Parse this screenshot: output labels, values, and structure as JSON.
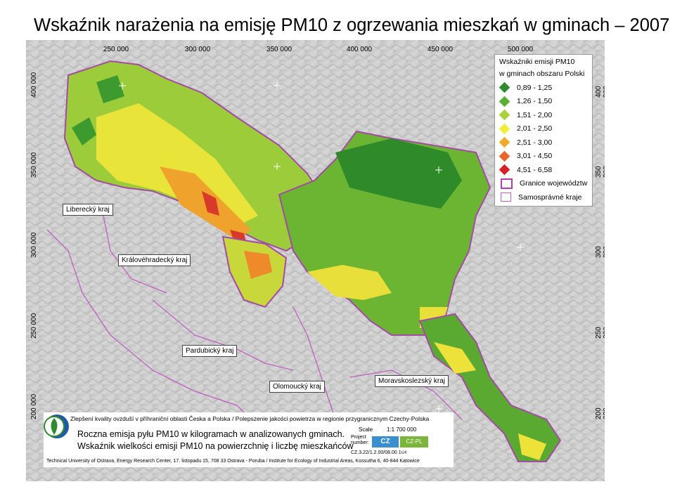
{
  "slide": {
    "title": "Wskaźnik narażenia na emisję PM10 z ogrzewania mieszkań w gminach – 2007 r."
  },
  "map": {
    "coords_top": [
      "250 000",
      "300 000",
      "350 000",
      "400 000",
      "450 000",
      "500 000"
    ],
    "coords_left": [
      "400 000",
      "350 000",
      "300 000",
      "250 000",
      "200 000"
    ],
    "coords_right": [
      "400 000",
      "350 000",
      "300 000",
      "250 000",
      "200 000"
    ],
    "regions": {
      "liberecky": "Liberecký kraj",
      "kralovehradecky": "Královéhradecký kraj",
      "pardubicky": "Pardubický kraj",
      "olomoucky": "Olomoucký kraj",
      "moravskoslezsky": "Moravskoslezský kraj"
    }
  },
  "legend": {
    "title": "Wskaźniki emisji PM10",
    "subtitle": "w gminach obszaru Polski",
    "classes": [
      {
        "label": "0,89 - 1,25",
        "color": "#2e8b2e"
      },
      {
        "label": "1,26 - 1,50",
        "color": "#58b032"
      },
      {
        "label": "1,51 - 2,00",
        "color": "#a8d23a"
      },
      {
        "label": "2,01 - 2,50",
        "color": "#f2ee3a"
      },
      {
        "label": "2,51 - 3,00",
        "color": "#f3a92c"
      },
      {
        "label": "3,01 - 4,50",
        "color": "#e8662a"
      },
      {
        "label": "4,51 - 6,58",
        "color": "#d8222a"
      }
    ],
    "boundaries": [
      {
        "label": "Granice województw"
      },
      {
        "label": "Samosprávné kraje"
      }
    ]
  },
  "footer": {
    "project": "Zlepšení kvality ovzduší v příhraniční oblasti Česka a Polska / Polepszenie jakości powietrza w regionie przygranicznym Czechy-Polska",
    "line1": "Roczna emisja pyłu PM10 w kilogramach w analizowanych gminach.",
    "line2": "Wskaźnik wielkości emisji PM10 na powierzchnię i liczbę mieszkańców",
    "scale_label": "Scale",
    "scale_value": "1:1 700 000",
    "project_number_label": "Project number:",
    "project_number_value": "CZ.3.22/1.2.00/08.00 104",
    "institutions": "Technical University of Ostrava, Energy Research Center, 17. listopadu 15, 708 33 Ostrava - Poruba / Institute for Ecology of Industrial Areas, Kossutha 6, 40-844 Katowice",
    "logo_cz": "CZ",
    "logo_cp": "CZ-PL 2007-2013"
  }
}
